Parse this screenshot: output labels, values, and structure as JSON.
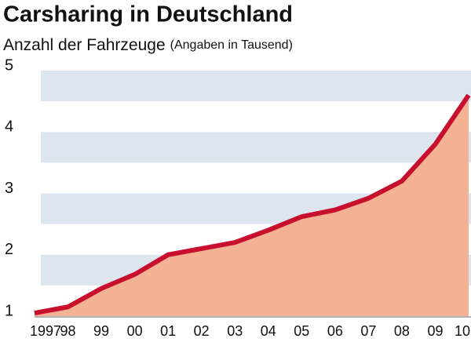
{
  "chart_data": {
    "type": "area",
    "title": "Carsharing in Deutschland",
    "subtitle": "Anzahl der Fahrzeuge",
    "note": "(Angaben in Tausend)",
    "categories": [
      "1997",
      "98",
      "99",
      "00",
      "01",
      "02",
      "03",
      "04",
      "05",
      "06",
      "07",
      "08",
      "09",
      "10"
    ],
    "values": [
      1.05,
      1.15,
      1.45,
      1.68,
      2.0,
      2.1,
      2.2,
      2.4,
      2.62,
      2.73,
      2.92,
      3.2,
      3.8,
      4.6
    ],
    "color": "#c8102e",
    "fill": "#f2b293",
    "ylim": [
      1,
      5
    ],
    "yticks": [
      1,
      2,
      3,
      4,
      5
    ],
    "stripes": "#dde6ef"
  }
}
